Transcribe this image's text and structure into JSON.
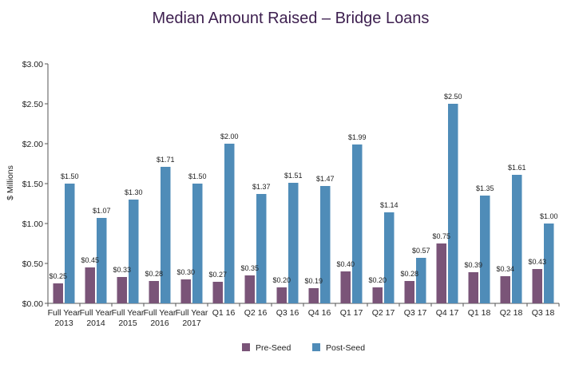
{
  "chart_data": {
    "type": "bar",
    "title": "Median Amount Raised – Bridge Loans",
    "xlabel": "",
    "ylabel": "$ Millions",
    "ylim": [
      0,
      3
    ],
    "yticks": [
      "$0.00",
      "$0.50",
      "$1.00",
      "$1.50",
      "$2.00",
      "$2.50",
      "$3.00"
    ],
    "ytick_values": [
      0,
      0.5,
      1.0,
      1.5,
      2.0,
      2.5,
      3.0
    ],
    "grid": false,
    "legend_position": "bottom",
    "categories": [
      [
        "Full Year",
        "2013"
      ],
      [
        "Full Year",
        "2014"
      ],
      [
        "Full Year",
        "2015"
      ],
      [
        "Full Year",
        "2016"
      ],
      [
        "Full Year",
        "2017"
      ],
      [
        "Q1 16"
      ],
      [
        "Q2 16"
      ],
      [
        "Q3 16"
      ],
      [
        "Q4 16"
      ],
      [
        "Q1 17"
      ],
      [
        "Q2 17"
      ],
      [
        "Q3 17"
      ],
      [
        "Q4 17"
      ],
      [
        "Q1 18"
      ],
      [
        "Q2 18"
      ],
      [
        "Q3 18"
      ]
    ],
    "series": [
      {
        "name": "Pre-Seed",
        "color": "#7a5478",
        "values": [
          0.25,
          0.45,
          0.33,
          0.28,
          0.3,
          0.27,
          0.35,
          0.2,
          0.19,
          0.4,
          0.2,
          0.28,
          0.75,
          0.39,
          0.34,
          0.43
        ],
        "labels": [
          "$0.25",
          "$0.45",
          "$0.33",
          "$0.28",
          "$0.30",
          "$0.27",
          "$0.35",
          "$0.20",
          "$0.19",
          "$0.40",
          "$0.20",
          "$0.28",
          "$0.75",
          "$0.39",
          "$0.34",
          "$0.43"
        ]
      },
      {
        "name": "Post-Seed",
        "color": "#4f8cb8",
        "values": [
          1.5,
          1.07,
          1.3,
          1.71,
          1.5,
          2.0,
          1.37,
          1.51,
          1.47,
          1.99,
          1.14,
          0.57,
          2.5,
          1.35,
          1.61,
          1.0
        ],
        "labels": [
          "$1.50",
          "$1.07",
          "$1.30",
          "$1.71",
          "$1.50",
          "$2.00",
          "$1.37",
          "$1.51",
          "$1.47",
          "$1.99",
          "$1.14",
          "$0.57",
          "$2.50",
          "$1.35",
          "$1.61",
          "$1.00"
        ]
      }
    ]
  }
}
